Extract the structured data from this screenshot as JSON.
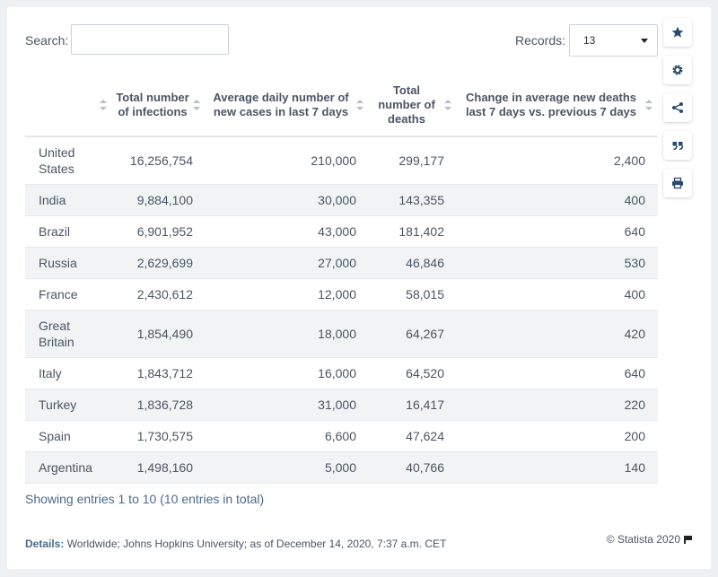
{
  "search": {
    "label": "Search:",
    "value": "",
    "placeholder": ""
  },
  "records": {
    "label": "Records:",
    "selected": "13"
  },
  "chart_data": {
    "type": "table",
    "columns": [
      "",
      "Total number of infections",
      "Average daily number of new cases in last 7 days",
      "Total number of deaths",
      "Change in average new deaths last 7 days vs. previous 7 days"
    ],
    "rows": [
      [
        "United States",
        "16,256,754",
        "210,000",
        "299,177",
        "2,400"
      ],
      [
        "India",
        "9,884,100",
        "30,000",
        "143,355",
        "400"
      ],
      [
        "Brazil",
        "6,901,952",
        "43,000",
        "181,402",
        "640"
      ],
      [
        "Russia",
        "2,629,699",
        "27,000",
        "46,846",
        "530"
      ],
      [
        "France",
        "2,430,612",
        "12,000",
        "58,015",
        "400"
      ],
      [
        "Great Britain",
        "1,854,490",
        "18,000",
        "64,267",
        "420"
      ],
      [
        "Italy",
        "1,843,712",
        "16,000",
        "64,520",
        "640"
      ],
      [
        "Turkey",
        "1,836,728",
        "31,000",
        "16,417",
        "220"
      ],
      [
        "Spain",
        "1,730,575",
        "6,600",
        "47,624",
        "200"
      ],
      [
        "Argentina",
        "1,498,160",
        "5,000",
        "40,766",
        "140"
      ]
    ]
  },
  "footer": {
    "showing": "Showing entries 1 to 10 (10 entries in total)",
    "details_label": "Details:",
    "details_text": " Worldwide; Johns Hopkins University; as of December 14, 2020, 7:37 a.m. CET",
    "copyright": "© Statista 2020"
  },
  "sidebar": {
    "icons": [
      "star-icon",
      "gear-icon",
      "share-icon",
      "quote-icon",
      "print-icon"
    ]
  }
}
